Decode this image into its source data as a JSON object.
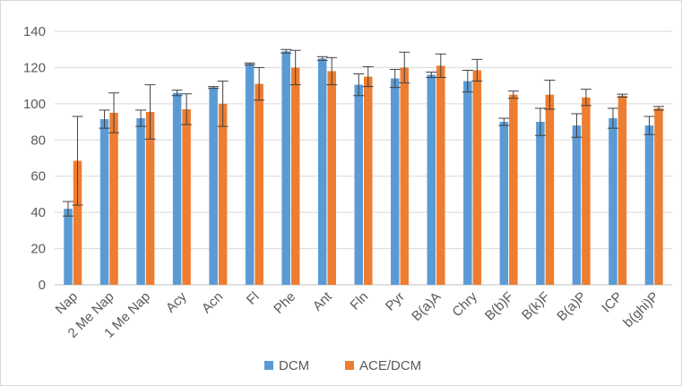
{
  "chart_data": {
    "type": "bar",
    "title": "",
    "xlabel": "",
    "ylabel": "",
    "ylim": [
      0,
      140
    ],
    "yticks": [
      0,
      20,
      40,
      60,
      80,
      100,
      120,
      140
    ],
    "grid": true,
    "legend_position": "bottom",
    "categories": [
      "Nap",
      "2 Me Nap",
      "1 Me Nap",
      "Acy",
      "Acn",
      "Fl",
      "Phe",
      "Ant",
      "Fln",
      "Pyr",
      "B(a)A",
      "Chry",
      "B(b)F",
      "B(k)F",
      "B(a)P",
      "ICP",
      "b(ghi)P"
    ],
    "series": [
      {
        "name": "DCM",
        "color": "#5B9BD5",
        "values": [
          42,
          91.5,
          92,
          106,
          109,
          122,
          129,
          125,
          110.5,
          114,
          116,
          112.5,
          90,
          90,
          88,
          92,
          88
        ],
        "error": [
          4,
          5,
          4.5,
          1.5,
          0.5,
          0.5,
          1,
          1,
          6,
          5,
          1.5,
          6,
          2,
          7.5,
          6.5,
          5.5,
          5
        ]
      },
      {
        "name": "ACE/DCM",
        "color": "#ED7D31",
        "values": [
          68.5,
          95,
          95.5,
          97,
          100,
          111,
          120,
          118,
          115,
          120,
          121,
          118.5,
          105,
          105,
          103.5,
          104.5,
          97.5
        ],
        "error": [
          24.5,
          11,
          15,
          8.5,
          12.5,
          9,
          9.5,
          7.5,
          5.5,
          8.5,
          6.5,
          6,
          2,
          8,
          4.5,
          0.8,
          1
        ]
      }
    ]
  }
}
